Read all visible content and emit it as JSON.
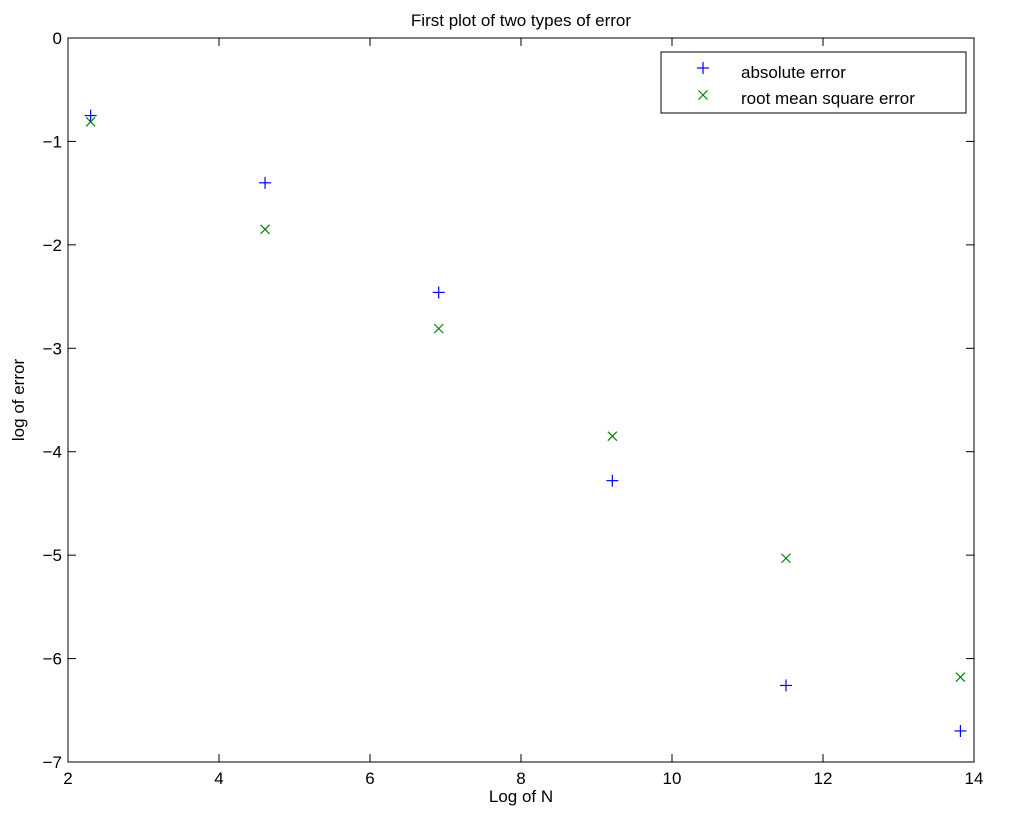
{
  "chart_data": {
    "type": "scatter",
    "title": "First plot of two types of error",
    "xlabel": "Log of N",
    "ylabel": "log of error",
    "xlim": [
      2,
      14
    ],
    "ylim": [
      -7,
      0
    ],
    "xticks": [
      2,
      4,
      6,
      8,
      10,
      12,
      14
    ],
    "yticks": [
      0,
      -1,
      -2,
      -3,
      -4,
      -5,
      -6,
      -7
    ],
    "xtick_labels": [
      "2",
      "4",
      "6",
      "8",
      "10",
      "12",
      "14"
    ],
    "ytick_labels": [
      "0",
      "−1",
      "−2",
      "−3",
      "−4",
      "−5",
      "−6",
      "−7"
    ],
    "grid": false,
    "legend_position": "top-right",
    "series": [
      {
        "name": "absolute error",
        "marker": "plus",
        "color": "#0000ff",
        "x": [
          2.3,
          4.61,
          6.91,
          9.21,
          11.51,
          13.82
        ],
        "y": [
          -0.75,
          -1.4,
          -2.46,
          -4.28,
          -6.26,
          -6.7
        ]
      },
      {
        "name": "root mean square error",
        "marker": "x",
        "color": "#008000",
        "x": [
          2.3,
          4.61,
          6.91,
          9.21,
          11.51,
          13.82
        ],
        "y": [
          -0.81,
          -1.85,
          -2.81,
          -3.85,
          -5.03,
          -6.18
        ]
      }
    ]
  }
}
